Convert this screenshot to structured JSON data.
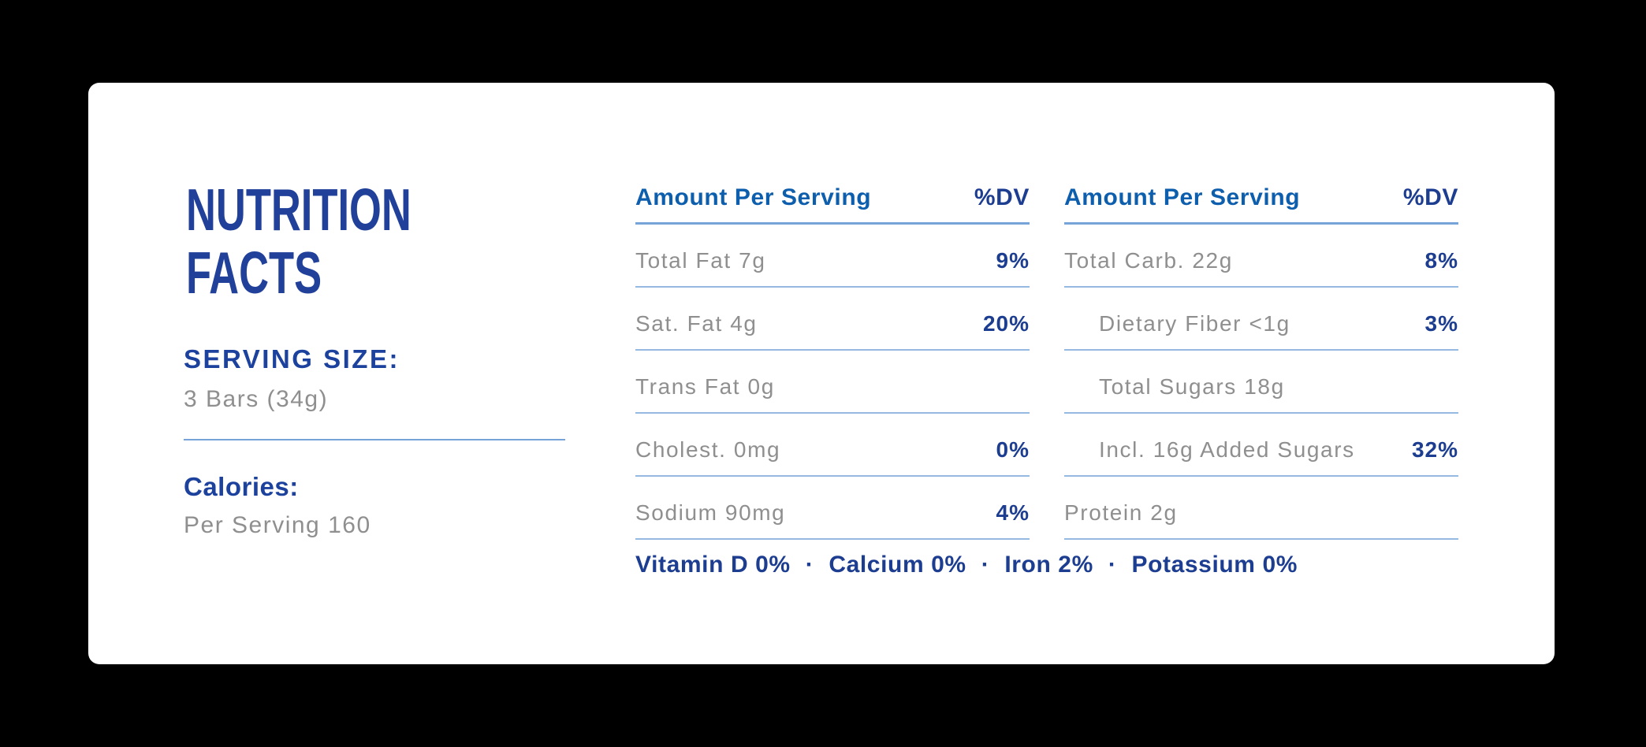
{
  "left_panel": {
    "title_line1": "NUTRITION",
    "title_line2": "FACTS",
    "serving_size_label": "SERVING SIZE:",
    "serving_size_value": "3 Bars (34g)",
    "calories_label": "Calories:",
    "calories_value": "Per Serving 160"
  },
  "columns": [
    {
      "header": {
        "label": "Amount Per Serving",
        "dv": "%DV"
      },
      "rows": [
        {
          "label": "Total Fat 7g",
          "dv": "9%"
        },
        {
          "label": "Sat. Fat 4g",
          "dv": "20%"
        },
        {
          "label": "Trans Fat 0g",
          "dv": ""
        },
        {
          "label": "Cholest. 0mg",
          "dv": "0%"
        },
        {
          "label": "Sodium 90mg",
          "dv": "4%"
        }
      ]
    },
    {
      "header": {
        "label": "Amount Per Serving",
        "dv": "%DV"
      },
      "rows": [
        {
          "label": "Total Carb. 22g",
          "dv": "8%"
        },
        {
          "label": "Dietary Fiber <1g",
          "dv": "3%"
        },
        {
          "label": "Total Sugars 18g",
          "dv": ""
        },
        {
          "label": "Incl. 16g Added Sugars",
          "dv": "32%"
        },
        {
          "label": "Protein 2g",
          "dv": ""
        }
      ]
    }
  ],
  "micronutrients": {
    "items": [
      "Vitamin D 0%",
      "Calcium 0%",
      "Iron 2%",
      "Potassium 0%"
    ],
    "dot_separator": "·"
  },
  "colors": {
    "page_background": "#000000",
    "card_background": "#FFFFFF",
    "title_navy": "#21409A",
    "header_azure": "#0D5EAC",
    "value_navy": "#1C3D90",
    "label_gray": "#8F8F8F",
    "line_medium_blue": "#76A3D8",
    "line_light_blue": "#96B9E4"
  }
}
